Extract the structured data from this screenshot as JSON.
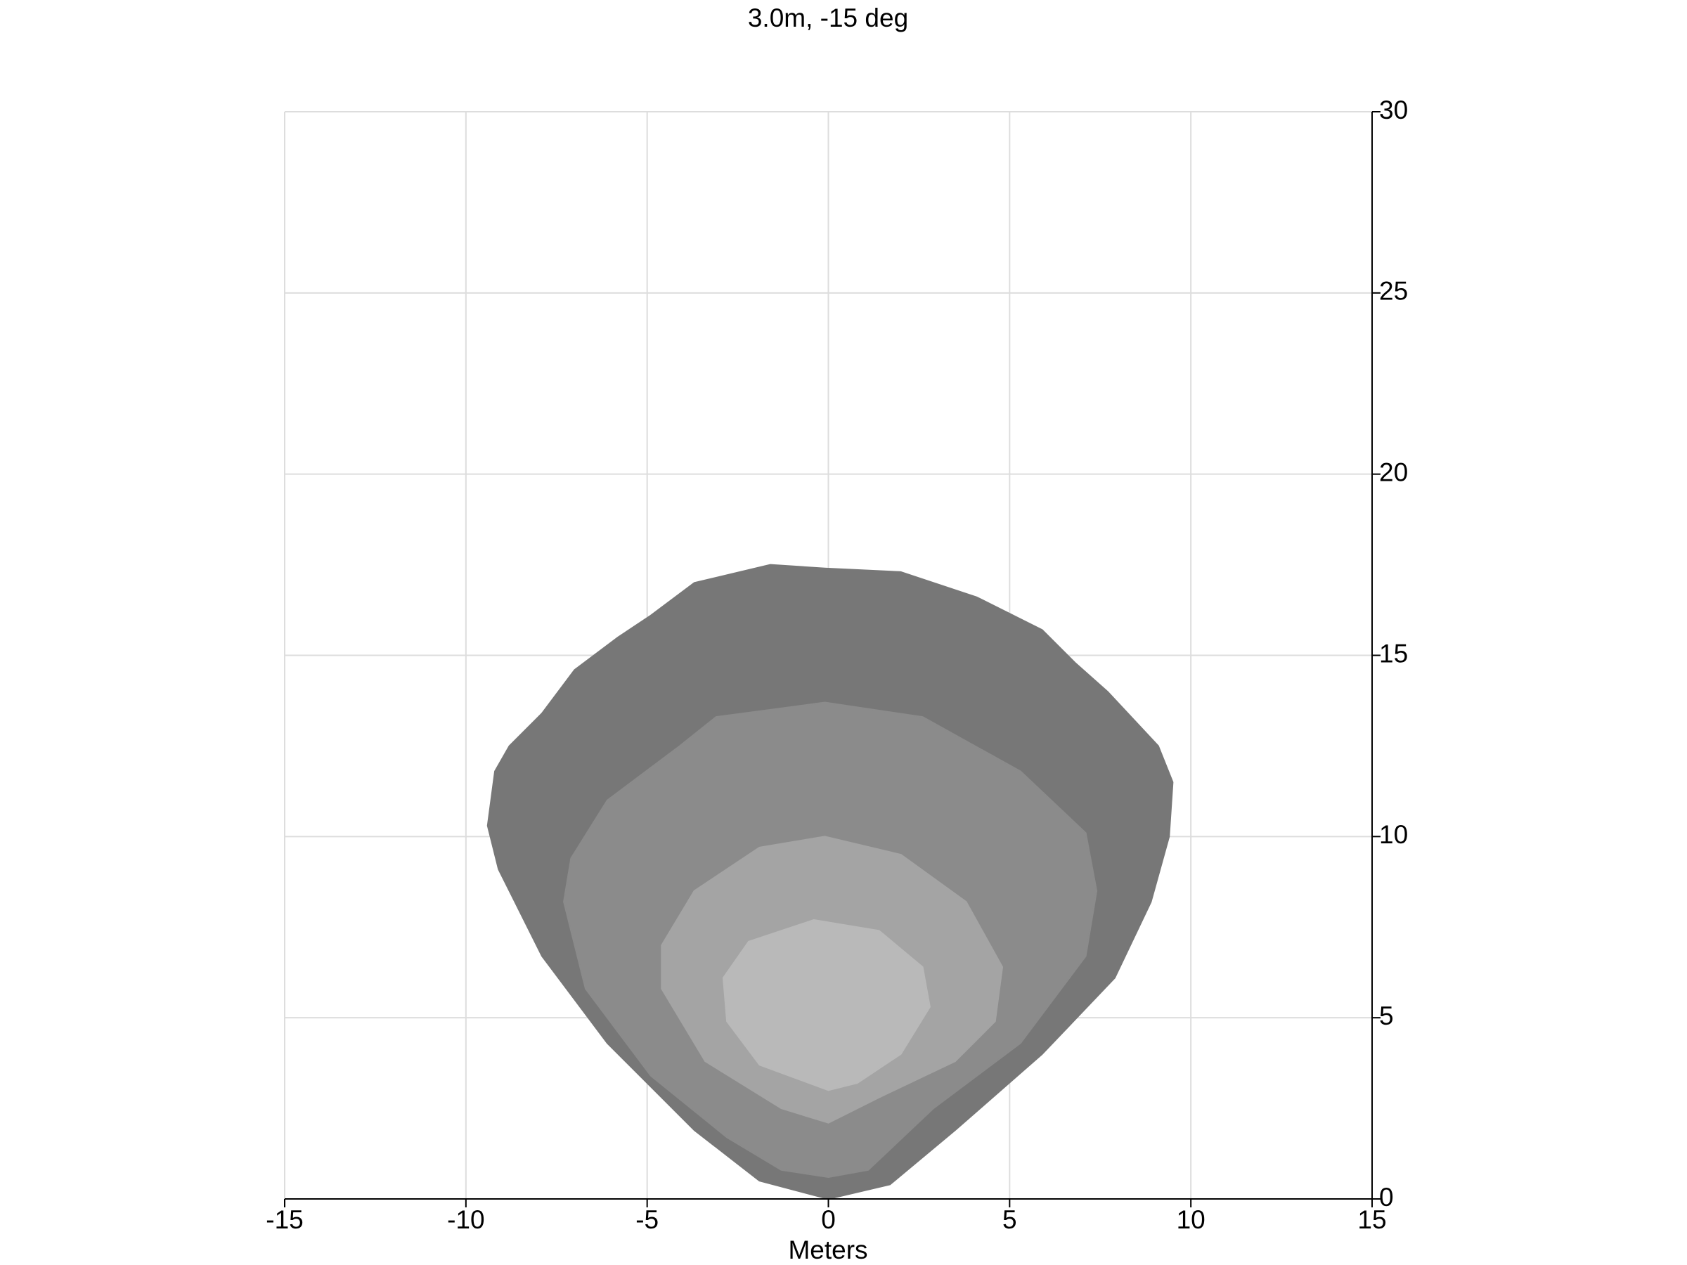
{
  "chart_data": {
    "type": "contour",
    "title": "3.0m, -15 deg",
    "xlabel": "Meters",
    "xlim": [
      -15,
      15
    ],
    "ylim": [
      0,
      30
    ],
    "xticks": [
      -15,
      -10,
      -5,
      0,
      5,
      10,
      15
    ],
    "yticks": [
      0,
      5,
      10,
      15,
      20,
      25,
      30
    ],
    "y_axis_side": "right",
    "grid": true,
    "series": [
      {
        "color": "#777777",
        "x": [
          0,
          -1.9,
          -3.7,
          -6.1,
          -7.9,
          -9.1,
          -9.4,
          -9.2,
          -8.8,
          -7.9,
          -7.0,
          -5.8,
          -4.9,
          -3.7,
          -1.6,
          -0.1,
          2.0,
          4.1,
          5.9,
          6.8,
          7.7,
          9.1,
          9.5,
          9.4,
          8.9,
          7.9,
          5.9,
          3.5,
          1.7
        ],
        "y": [
          0,
          0.5,
          1.9,
          4.3,
          6.7,
          9.1,
          10.3,
          11.8,
          12.5,
          13.4,
          14.6,
          15.5,
          16.1,
          17.0,
          17.5,
          17.4,
          17.3,
          16.6,
          15.7,
          14.8,
          14.0,
          12.5,
          11.5,
          10.0,
          8.2,
          6.1,
          4.0,
          1.9,
          0.4
        ]
      },
      {
        "color": "#8b8b8b",
        "x": [
          0,
          -1.3,
          -2.8,
          -4.9,
          -6.7,
          -7.3,
          -7.1,
          -6.1,
          -4.1,
          -3.1,
          -0.1,
          2.6,
          5.3,
          7.1,
          7.4,
          7.1,
          5.3,
          2.9,
          1.1
        ],
        "y": [
          0.6,
          0.8,
          1.7,
          3.4,
          5.8,
          8.2,
          9.4,
          11.0,
          12.5,
          13.3,
          13.7,
          13.3,
          11.8,
          10.1,
          8.5,
          6.7,
          4.3,
          2.5,
          0.8
        ]
      },
      {
        "color": "#a4a4a4",
        "x": [
          0,
          -1.3,
          -3.4,
          -4.6,
          -4.6,
          -3.7,
          -1.9,
          -0.1,
          2.0,
          3.8,
          4.8,
          4.6,
          3.5,
          1.4
        ],
        "y": [
          2.1,
          2.5,
          3.8,
          5.8,
          7.0,
          8.5,
          9.7,
          10.0,
          9.5,
          8.2,
          6.4,
          4.9,
          3.8,
          2.8
        ]
      },
      {
        "color": "#b9b9b9",
        "x": [
          0,
          -1.9,
          -2.8,
          -2.9,
          -2.2,
          -0.4,
          1.4,
          2.6,
          2.8,
          2.0,
          0.8
        ],
        "y": [
          3.0,
          3.7,
          4.9,
          6.1,
          7.1,
          7.7,
          7.4,
          6.4,
          5.3,
          4.0,
          3.2
        ]
      }
    ]
  }
}
